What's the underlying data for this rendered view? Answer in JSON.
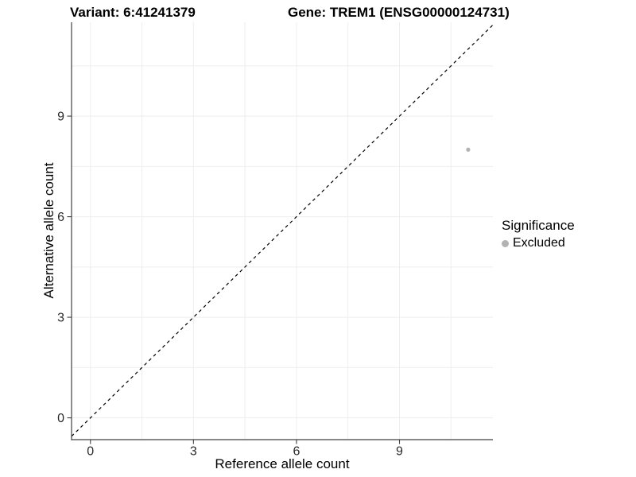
{
  "figure": {
    "title_left": "Variant: 6:41241379",
    "title_right": "Gene: TREM1 (ENSG00000124731)"
  },
  "axes": {
    "x_label": "Reference allele count",
    "y_label": "Alternative allele count"
  },
  "legend": {
    "title": "Significance",
    "items": [
      {
        "label": "Excluded",
        "color": "#b3b3b3"
      }
    ]
  },
  "colors": {
    "background": "#ffffff",
    "grid": "#eeeeee",
    "axis_line": "#404040",
    "tick_text": "#2b2b2b",
    "title_text": "#000000",
    "point": "#b3b3b3",
    "identity_line": "#000000"
  },
  "chart_data": {
    "type": "scatter",
    "title": "Variant: 6:41241379   Gene: TREM1 (ENSG00000124731)",
    "xlabel": "Reference allele count",
    "ylabel": "Alternative allele count",
    "x_ticks": [
      0,
      3,
      6,
      9
    ],
    "y_ticks": [
      0,
      3,
      6,
      9
    ],
    "xlim": [
      -0.55,
      11.72
    ],
    "ylim": [
      -0.65,
      11.8
    ],
    "grid": true,
    "grid_step": 1.5,
    "legend_position": "right",
    "identity_line": {
      "equation": "y = x",
      "style": "dashed",
      "color": "#000000"
    },
    "series": [
      {
        "name": "Excluded",
        "color": "#b3b3b3",
        "point_radius": 2.6,
        "points": [
          {
            "x": 11,
            "y": 8
          }
        ]
      }
    ]
  }
}
